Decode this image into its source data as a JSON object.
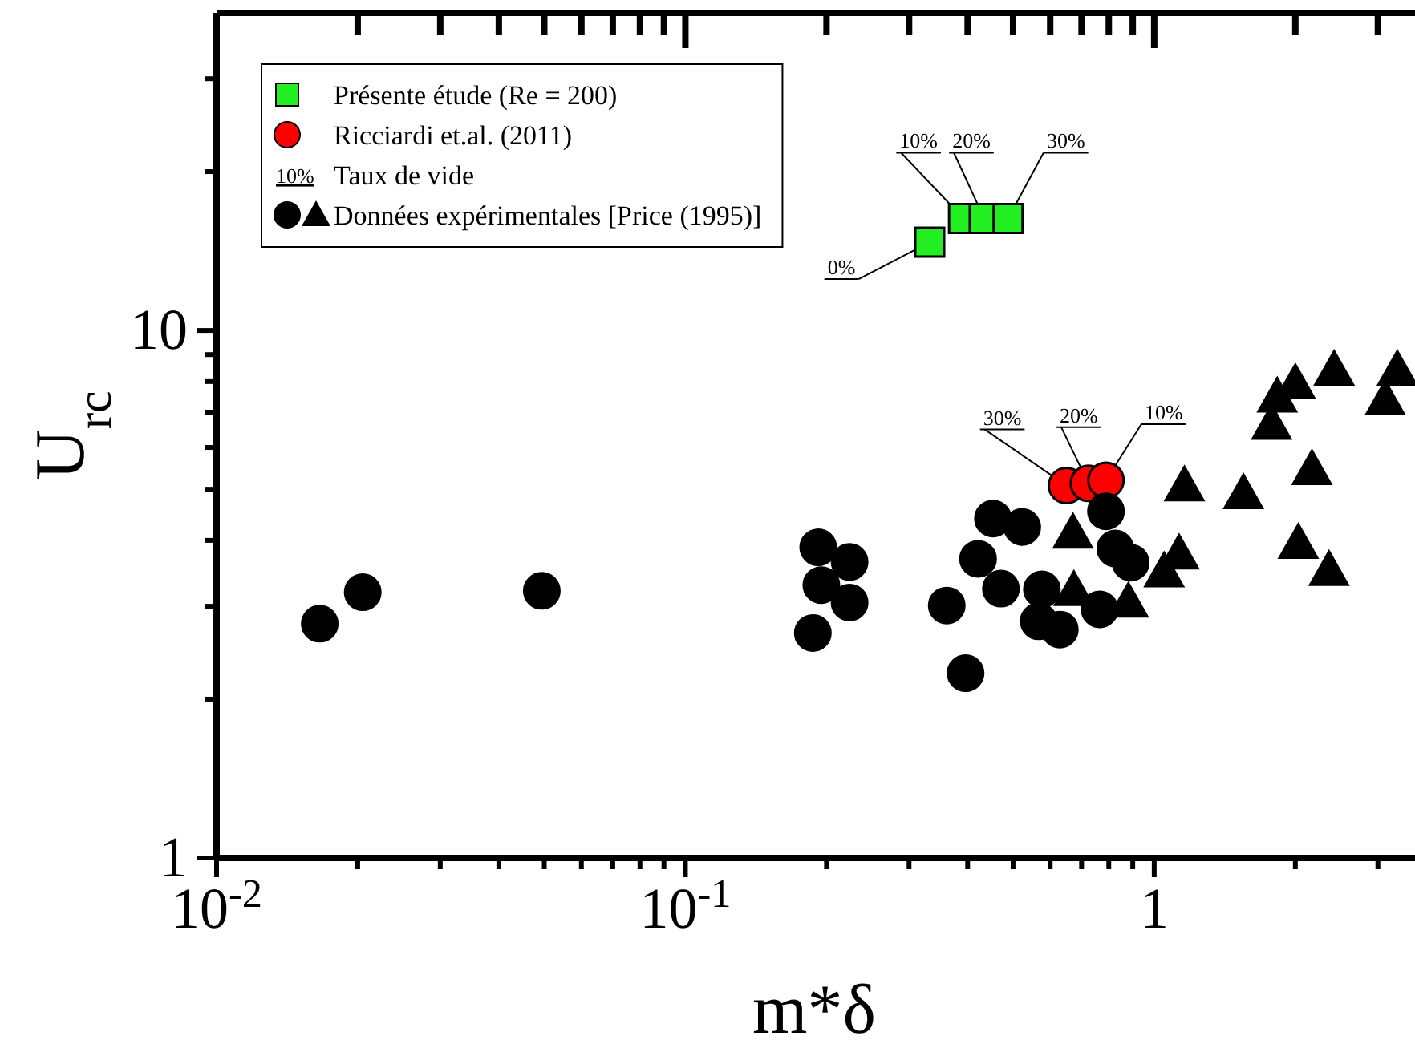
{
  "chart_data": {
    "type": "scatter",
    "xlabel": "m*δ",
    "ylabel": "U$_{rc}$",
    "log": "xy",
    "xlim": [
      0.01,
      3.6
    ],
    "ylim": [
      1,
      40
    ],
    "xticks": [
      {
        "value": 0.01,
        "label": "10$^{-2}$"
      },
      {
        "value": 0.02,
        "label": null
      },
      {
        "value": 0.03,
        "label": null
      },
      {
        "value": 0.04,
        "label": null
      },
      {
        "value": 0.05,
        "label": null
      },
      {
        "value": 0.06,
        "label": null
      },
      {
        "value": 0.07,
        "label": null
      },
      {
        "value": 0.08,
        "label": null
      },
      {
        "value": 0.09,
        "label": null
      },
      {
        "value": 0.1,
        "label": "10$^{-1}$"
      },
      {
        "value": 0.2,
        "label": null
      },
      {
        "value": 0.3,
        "label": null
      },
      {
        "value": 0.4,
        "label": null
      },
      {
        "value": 0.5,
        "label": null
      },
      {
        "value": 0.6,
        "label": null
      },
      {
        "value": 0.7,
        "label": null
      },
      {
        "value": 0.8,
        "label": null
      },
      {
        "value": 0.9,
        "label": null
      },
      1,
      {
        "value": 2,
        "label": null
      },
      {
        "value": 3,
        "label": null
      }
    ],
    "yticks": [
      1,
      {
        "value": 2,
        "label": null
      },
      {
        "value": 3,
        "label": null
      },
      {
        "value": 4,
        "label": null
      },
      {
        "value": 5,
        "label": null
      },
      {
        "value": 6,
        "label": null
      },
      {
        "value": 7,
        "label": null
      },
      {
        "value": 8,
        "label": null
      },
      {
        "value": 9,
        "label": null
      },
      10,
      {
        "value": 20,
        "label": null
      },
      {
        "value": 30,
        "label": null
      }
    ],
    "grid": false,
    "legend": "top left",
    "series": [
      {
        "name": "Présente étude (Re = 200)",
        "color": "#22ee22",
        "marker": "square",
        "x": [
          0.332,
          0.392,
          0.434,
          0.488
        ],
        "values": [
          14.7,
          16.3,
          16.3,
          16.3
        ]
      },
      {
        "name": "Ricciardi et.al. (2011)",
        "color": "#ff0000",
        "marker": "circle",
        "x": [
          0.65,
          0.724,
          0.789
        ],
        "values": [
          5.08,
          5.13,
          5.2
        ]
      },
      {
        "name": "Données expérimentales [Price (1995)]",
        "color": "#000000",
        "marker": "circle",
        "x": [
          0.0166,
          0.0205,
          0.0494,
          0.192,
          0.195,
          0.187,
          0.224,
          0.224,
          0.453,
          0.523,
          0.421,
          0.471,
          0.361,
          0.576,
          0.567,
          0.629,
          0.396,
          0.789,
          0.826,
          0.891,
          0.765
        ],
        "values": [
          2.78,
          3.19,
          3.21,
          3.88,
          3.29,
          2.67,
          3.64,
          3.05,
          4.4,
          4.24,
          3.69,
          3.24,
          3.01,
          3.23,
          2.81,
          2.71,
          2.24,
          4.54,
          3.86,
          3.63,
          2.96
        ]
      },
      {
        "color": "#000000",
        "marker": "triangle",
        "x": [
          0.671,
          0.674,
          0.881,
          1.05,
          1.13,
          1.16,
          1.55,
          2.17,
          2.03,
          2.36,
          1.78,
          1.83,
          2.0,
          2.42,
          3.3,
          3.11
        ],
        "values": [
          4.11,
          3.2,
          3.04,
          3.47,
          3.75,
          5.05,
          4.88,
          5.42,
          3.93,
          3.49,
          6.61,
          7.44,
          7.89,
          8.37,
          8.37,
          7.35
        ]
      }
    ],
    "annotations": [
      {
        "text": "0%",
        "x": 0.332,
        "y": 14.7
      },
      {
        "text": "10%",
        "x": 0.392,
        "y": 16.3
      },
      {
        "text": "20%",
        "x": 0.434,
        "y": 16.3
      },
      {
        "text": "30%",
        "x": 0.488,
        "y": 16.3
      },
      {
        "text": "30%",
        "x": 0.65,
        "y": 5.08
      },
      {
        "text": "20%",
        "x": 0.724,
        "y": 5.13
      },
      {
        "text": "10%",
        "x": 0.789,
        "y": 5.2
      },
      "10% Taux de vide"
    ]
  }
}
